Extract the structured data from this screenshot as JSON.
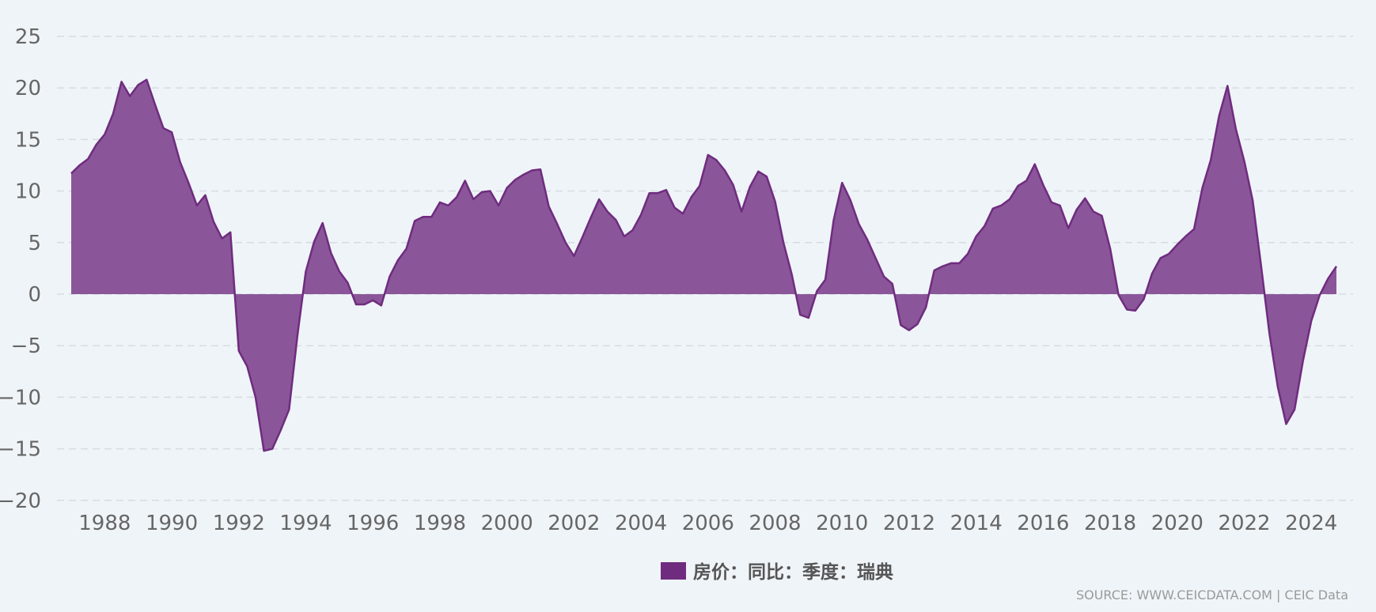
{
  "chart_data": {
    "type": "area",
    "x": [
      "1987Q1",
      "1987Q2",
      "1987Q3",
      "1987Q4",
      "1988Q1",
      "1988Q2",
      "1988Q3",
      "1988Q4",
      "1989Q1",
      "1989Q2",
      "1989Q3",
      "1989Q4",
      "1990Q1",
      "1990Q2",
      "1990Q3",
      "1990Q4",
      "1991Q1",
      "1991Q2",
      "1991Q3",
      "1991Q4",
      "1992Q1",
      "1992Q2",
      "1992Q3",
      "1992Q4",
      "1993Q1",
      "1993Q2",
      "1993Q3",
      "1993Q4",
      "1994Q1",
      "1994Q2",
      "1994Q3",
      "1994Q4",
      "1995Q1",
      "1995Q2",
      "1995Q3",
      "1995Q4",
      "1996Q1",
      "1996Q2",
      "1996Q3",
      "1996Q4",
      "1997Q1",
      "1997Q2",
      "1997Q3",
      "1997Q4",
      "1998Q1",
      "1998Q2",
      "1998Q3",
      "1998Q4",
      "1999Q1",
      "1999Q2",
      "1999Q3",
      "1999Q4",
      "2000Q1",
      "2000Q2",
      "2000Q3",
      "2000Q4",
      "2001Q1",
      "2001Q2",
      "2001Q3",
      "2001Q4",
      "2002Q1",
      "2002Q2",
      "2002Q3",
      "2002Q4",
      "2003Q1",
      "2003Q2",
      "2003Q3",
      "2003Q4",
      "2004Q1",
      "2004Q2",
      "2004Q3",
      "2004Q4",
      "2005Q1",
      "2005Q2",
      "2005Q3",
      "2005Q4",
      "2006Q1",
      "2006Q2",
      "2006Q3",
      "2006Q4",
      "2007Q1",
      "2007Q2",
      "2007Q3",
      "2007Q4",
      "2008Q1",
      "2008Q2",
      "2008Q3",
      "2008Q4",
      "2009Q1",
      "2009Q2",
      "2009Q3",
      "2009Q4",
      "2010Q1",
      "2010Q2",
      "2010Q3",
      "2010Q4",
      "2011Q1",
      "2011Q2",
      "2011Q3",
      "2011Q4",
      "2012Q1",
      "2012Q2",
      "2012Q3",
      "2012Q4",
      "2013Q1",
      "2013Q2",
      "2013Q3",
      "2013Q4",
      "2014Q1",
      "2014Q2",
      "2014Q3",
      "2014Q4",
      "2015Q1",
      "2015Q2",
      "2015Q3",
      "2015Q4",
      "2016Q1",
      "2016Q2",
      "2016Q3",
      "2016Q4",
      "2017Q1",
      "2017Q2",
      "2017Q3",
      "2017Q4",
      "2018Q1",
      "2018Q2",
      "2018Q3",
      "2018Q4",
      "2019Q1",
      "2019Q2",
      "2019Q3",
      "2019Q4",
      "2020Q1",
      "2020Q2",
      "2020Q3",
      "2020Q4",
      "2021Q1",
      "2021Q2",
      "2021Q3",
      "2021Q4",
      "2022Q1",
      "2022Q2",
      "2022Q3",
      "2022Q4",
      "2023Q1",
      "2023Q2",
      "2023Q3",
      "2023Q4",
      "2024Q1",
      "2024Q2",
      "2024Q3",
      "2024Q4"
    ],
    "series": [
      {
        "name": "房价：同比：季度：瑞典",
        "color": "#6f2c7f",
        "values": [
          11.7,
          12.5,
          13.1,
          14.5,
          15.5,
          17.5,
          20.6,
          19.2,
          20.3,
          20.8,
          18.4,
          16.1,
          15.7,
          12.8,
          10.8,
          8.6,
          9.6,
          7.0,
          5.4,
          6.0,
          -5.5,
          -7.0,
          -10.0,
          -15.2,
          -15.0,
          -13.2,
          -11.2,
          -4.0,
          2.2,
          5.1,
          6.9,
          4.0,
          2.2,
          1.1,
          -1.0,
          -1.0,
          -0.6,
          -1.1,
          1.7,
          3.3,
          4.4,
          7.1,
          7.5,
          7.5,
          8.9,
          8.6,
          9.4,
          11.0,
          9.2,
          9.9,
          10.0,
          8.6,
          10.3,
          11.1,
          11.6,
          12.0,
          12.1,
          8.5,
          6.8,
          5.0,
          3.7,
          5.5,
          7.4,
          9.2,
          8.0,
          7.2,
          5.6,
          6.2,
          7.7,
          9.8,
          9.8,
          10.1,
          8.4,
          7.8,
          9.4,
          10.5,
          13.5,
          13.0,
          12.0,
          10.6,
          8.0,
          10.4,
          11.9,
          11.4,
          9.0,
          5.0,
          1.9,
          -2.0,
          -2.3,
          0.3,
          1.4,
          7.2,
          10.8,
          9.1,
          6.8,
          5.3,
          3.5,
          1.7,
          1.0,
          -3.0,
          -3.5,
          -2.9,
          -1.3,
          2.3,
          2.7,
          3.0,
          3.0,
          3.9,
          5.6,
          6.6,
          8.3,
          8.6,
          9.2,
          10.5,
          11.0,
          12.6,
          10.6,
          8.9,
          8.6,
          6.4,
          8.2,
          9.3,
          8.0,
          7.6,
          4.4,
          -0.1,
          -1.5,
          -1.6,
          -0.5,
          2.0,
          3.5,
          3.9,
          4.8,
          5.6,
          6.3,
          10.3,
          13.0,
          17.3,
          20.2,
          16.0,
          12.9,
          9.1,
          2.8,
          -3.8,
          -9.0,
          -12.6,
          -11.2,
          -6.5,
          -2.6,
          -0.1,
          1.5,
          2.7
        ]
      }
    ],
    "x_tick_labels": [
      "1988",
      "1990",
      "1992",
      "1994",
      "1996",
      "1998",
      "2000",
      "2002",
      "2004",
      "2006",
      "2008",
      "2010",
      "2012",
      "2014",
      "2016",
      "2018",
      "2020",
      "2022",
      "2024"
    ],
    "y_tick_labels": [
      "25",
      "20",
      "15",
      "10",
      "5",
      "0",
      "−5",
      "−10",
      "−15",
      "−20"
    ],
    "ylim": [
      -20,
      25
    ],
    "grid": true,
    "legend_position": "bottom-center",
    "legend_color": "#6f2c7f",
    "fill_color": "#8a5699",
    "line_color": "#6f2c7f"
  },
  "source_text": "SOURCE: WWW.CEICDATA.COM | CEIC Data"
}
